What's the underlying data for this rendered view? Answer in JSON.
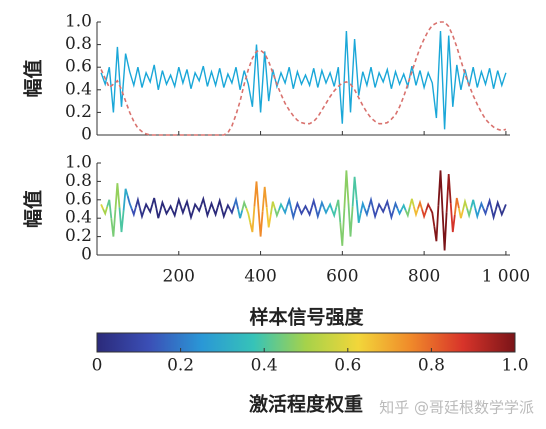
{
  "chart_data": [
    {
      "type": "line",
      "y_label": "幅值",
      "x": [
        10,
        20,
        30,
        40,
        50,
        60,
        70,
        80,
        90,
        100,
        110,
        120,
        130,
        140,
        150,
        160,
        170,
        180,
        190,
        200,
        210,
        220,
        230,
        240,
        250,
        260,
        270,
        280,
        290,
        300,
        310,
        320,
        330,
        340,
        350,
        360,
        370,
        380,
        390,
        400,
        410,
        420,
        430,
        440,
        450,
        460,
        470,
        480,
        490,
        500,
        510,
        520,
        530,
        540,
        550,
        560,
        570,
        580,
        590,
        600,
        610,
        620,
        630,
        640,
        650,
        660,
        670,
        680,
        690,
        700,
        710,
        720,
        730,
        740,
        750,
        760,
        770,
        780,
        790,
        800,
        810,
        820,
        830,
        840,
        850,
        860,
        870,
        880,
        890,
        900,
        910,
        920,
        930,
        940,
        950,
        960,
        970,
        980,
        990,
        1000
      ],
      "series": [
        {
          "color": "#1aa7d8",
          "style": "solid",
          "values": [
            0.55,
            0.45,
            0.6,
            0.2,
            0.78,
            0.25,
            0.72,
            0.56,
            0.44,
            0.6,
            0.42,
            0.55,
            0.47,
            0.62,
            0.4,
            0.57,
            0.45,
            0.53,
            0.43,
            0.6,
            0.46,
            0.58,
            0.41,
            0.55,
            0.48,
            0.61,
            0.43,
            0.56,
            0.44,
            0.59,
            0.42,
            0.54,
            0.46,
            0.6,
            0.4,
            0.57,
            0.45,
            0.25,
            0.8,
            0.2,
            0.74,
            0.3,
            0.58,
            0.43,
            0.55,
            0.46,
            0.6,
            0.41,
            0.56,
            0.45,
            0.53,
            0.44,
            0.59,
            0.42,
            0.57,
            0.46,
            0.55,
            0.43,
            0.6,
            0.1,
            0.92,
            0.2,
            0.85,
            0.35,
            0.56,
            0.44,
            0.6,
            0.42,
            0.55,
            0.47,
            0.58,
            0.41,
            0.56,
            0.45,
            0.54,
            0.43,
            0.61,
            0.44,
            0.57,
            0.42,
            0.55,
            0.46,
            0.15,
            0.92,
            0.05,
            0.88,
            0.25,
            0.62,
            0.4,
            0.58,
            0.43,
            0.6,
            0.42,
            0.56,
            0.45,
            0.59,
            0.41,
            0.57,
            0.44,
            0.55
          ]
        },
        {
          "color": "#d9726e",
          "style": "dashed",
          "values": [
            0.58,
            0.5,
            0.42,
            0.45,
            0.48,
            0.4,
            0.3,
            0.2,
            0.12,
            0.06,
            0.03,
            0.01,
            0,
            0,
            0,
            0,
            0,
            0,
            0,
            0,
            0,
            0,
            0,
            0,
            0,
            0,
            0,
            0,
            0,
            0,
            0,
            0.02,
            0.08,
            0.18,
            0.3,
            0.45,
            0.58,
            0.68,
            0.74,
            0.75,
            0.72,
            0.65,
            0.55,
            0.45,
            0.36,
            0.28,
            0.22,
            0.17,
            0.13,
            0.11,
            0.1,
            0.1,
            0.12,
            0.16,
            0.22,
            0.28,
            0.34,
            0.39,
            0.43,
            0.46,
            0.47,
            0.45,
            0.4,
            0.33,
            0.26,
            0.2,
            0.15,
            0.12,
            0.1,
            0.1,
            0.11,
            0.14,
            0.18,
            0.25,
            0.34,
            0.45,
            0.56,
            0.67,
            0.77,
            0.85,
            0.92,
            0.97,
            0.99,
            1.0,
            1.0,
            0.96,
            0.88,
            0.78,
            0.66,
            0.54,
            0.44,
            0.35,
            0.27,
            0.2,
            0.14,
            0.1,
            0.07,
            0.05,
            0.04,
            0.05
          ]
        }
      ],
      "xlim": [
        0,
        1010
      ],
      "ylim": [
        0,
        1
      ],
      "yticks": [
        0,
        0.2,
        0.4,
        0.6,
        0.8,
        {
          "value": 1,
          "label": "1.0"
        }
      ]
    },
    {
      "type": "colored_line",
      "y_label": "幅值",
      "x_label": "样本信号强度",
      "x": [
        10,
        20,
        30,
        40,
        50,
        60,
        70,
        80,
        90,
        100,
        110,
        120,
        130,
        140,
        150,
        160,
        170,
        180,
        190,
        200,
        210,
        220,
        230,
        240,
        250,
        260,
        270,
        280,
        290,
        300,
        310,
        320,
        330,
        340,
        350,
        360,
        370,
        380,
        390,
        400,
        410,
        420,
        430,
        440,
        450,
        460,
        470,
        480,
        490,
        500,
        510,
        520,
        530,
        540,
        550,
        560,
        570,
        580,
        590,
        600,
        610,
        620,
        630,
        640,
        650,
        660,
        670,
        680,
        690,
        700,
        710,
        720,
        730,
        740,
        750,
        760,
        770,
        780,
        790,
        800,
        810,
        820,
        830,
        840,
        850,
        860,
        870,
        880,
        890,
        900,
        910,
        920,
        930,
        940,
        950,
        960,
        970,
        980,
        990,
        1000
      ],
      "values": [
        0.55,
        0.45,
        0.6,
        0.2,
        0.78,
        0.25,
        0.72,
        0.56,
        0.44,
        0.6,
        0.42,
        0.55,
        0.47,
        0.62,
        0.4,
        0.57,
        0.45,
        0.53,
        0.43,
        0.6,
        0.46,
        0.58,
        0.41,
        0.55,
        0.48,
        0.61,
        0.43,
        0.56,
        0.44,
        0.59,
        0.42,
        0.54,
        0.46,
        0.6,
        0.4,
        0.57,
        0.45,
        0.25,
        0.8,
        0.2,
        0.74,
        0.3,
        0.58,
        0.43,
        0.55,
        0.46,
        0.6,
        0.41,
        0.56,
        0.45,
        0.53,
        0.44,
        0.59,
        0.42,
        0.57,
        0.46,
        0.55,
        0.43,
        0.6,
        0.1,
        0.92,
        0.2,
        0.85,
        0.35,
        0.56,
        0.44,
        0.6,
        0.42,
        0.55,
        0.47,
        0.58,
        0.41,
        0.56,
        0.45,
        0.54,
        0.43,
        0.61,
        0.44,
        0.57,
        0.42,
        0.55,
        0.46,
        0.15,
        0.92,
        0.05,
        0.88,
        0.25,
        0.62,
        0.4,
        0.58,
        0.43,
        0.6,
        0.42,
        0.56,
        0.45,
        0.59,
        0.41,
        0.57,
        0.44,
        0.55
      ],
      "weights": [
        0.58,
        0.5,
        0.42,
        0.45,
        0.48,
        0.4,
        0.3,
        0.2,
        0.12,
        0.06,
        0.03,
        0.01,
        0,
        0,
        0,
        0,
        0,
        0,
        0,
        0,
        0,
        0,
        0,
        0,
        0,
        0,
        0,
        0,
        0,
        0,
        0,
        0.02,
        0.08,
        0.18,
        0.3,
        0.45,
        0.58,
        0.68,
        0.74,
        0.75,
        0.72,
        0.65,
        0.55,
        0.45,
        0.36,
        0.28,
        0.22,
        0.17,
        0.13,
        0.11,
        0.1,
        0.1,
        0.12,
        0.16,
        0.22,
        0.28,
        0.34,
        0.39,
        0.43,
        0.46,
        0.47,
        0.45,
        0.4,
        0.33,
        0.26,
        0.2,
        0.15,
        0.12,
        0.1,
        0.1,
        0.11,
        0.14,
        0.18,
        0.25,
        0.34,
        0.45,
        0.56,
        0.67,
        0.77,
        0.85,
        0.92,
        0.97,
        0.99,
        1.0,
        1.0,
        0.96,
        0.88,
        0.78,
        0.66,
        0.54,
        0.44,
        0.35,
        0.27,
        0.2,
        0.14,
        0.1,
        0.07,
        0.05,
        0.04,
        0.05
      ],
      "colormap": [
        "#2b2a7a",
        "#3b4fb6",
        "#2a97d6",
        "#36c3b8",
        "#a6d24a",
        "#f2d63a",
        "#f08a2a",
        "#d8342a",
        "#7a1418"
      ],
      "xlim": [
        0,
        1010
      ],
      "ylim": [
        0,
        1
      ],
      "xticks": [
        200,
        400,
        600,
        800,
        {
          "value": 1000,
          "label": "1 000"
        }
      ],
      "yticks": [
        0,
        0.2,
        0.4,
        0.6,
        0.8,
        {
          "value": 1,
          "label": "1.0"
        }
      ]
    },
    {
      "type": "colorbar",
      "label": "激活程度权重",
      "colormap": [
        "#2b2a7a",
        "#3b4fb6",
        "#2a97d6",
        "#36c3b8",
        "#a6d24a",
        "#f2d63a",
        "#f08a2a",
        "#d8342a",
        "#7a1418"
      ],
      "xlim": [
        0,
        1
      ],
      "xticks": [
        0,
        0.2,
        0.4,
        0.6,
        0.8,
        {
          "value": 1,
          "label": "1.0"
        }
      ]
    }
  ],
  "watermark": "知乎 @哥廷根数学学派"
}
